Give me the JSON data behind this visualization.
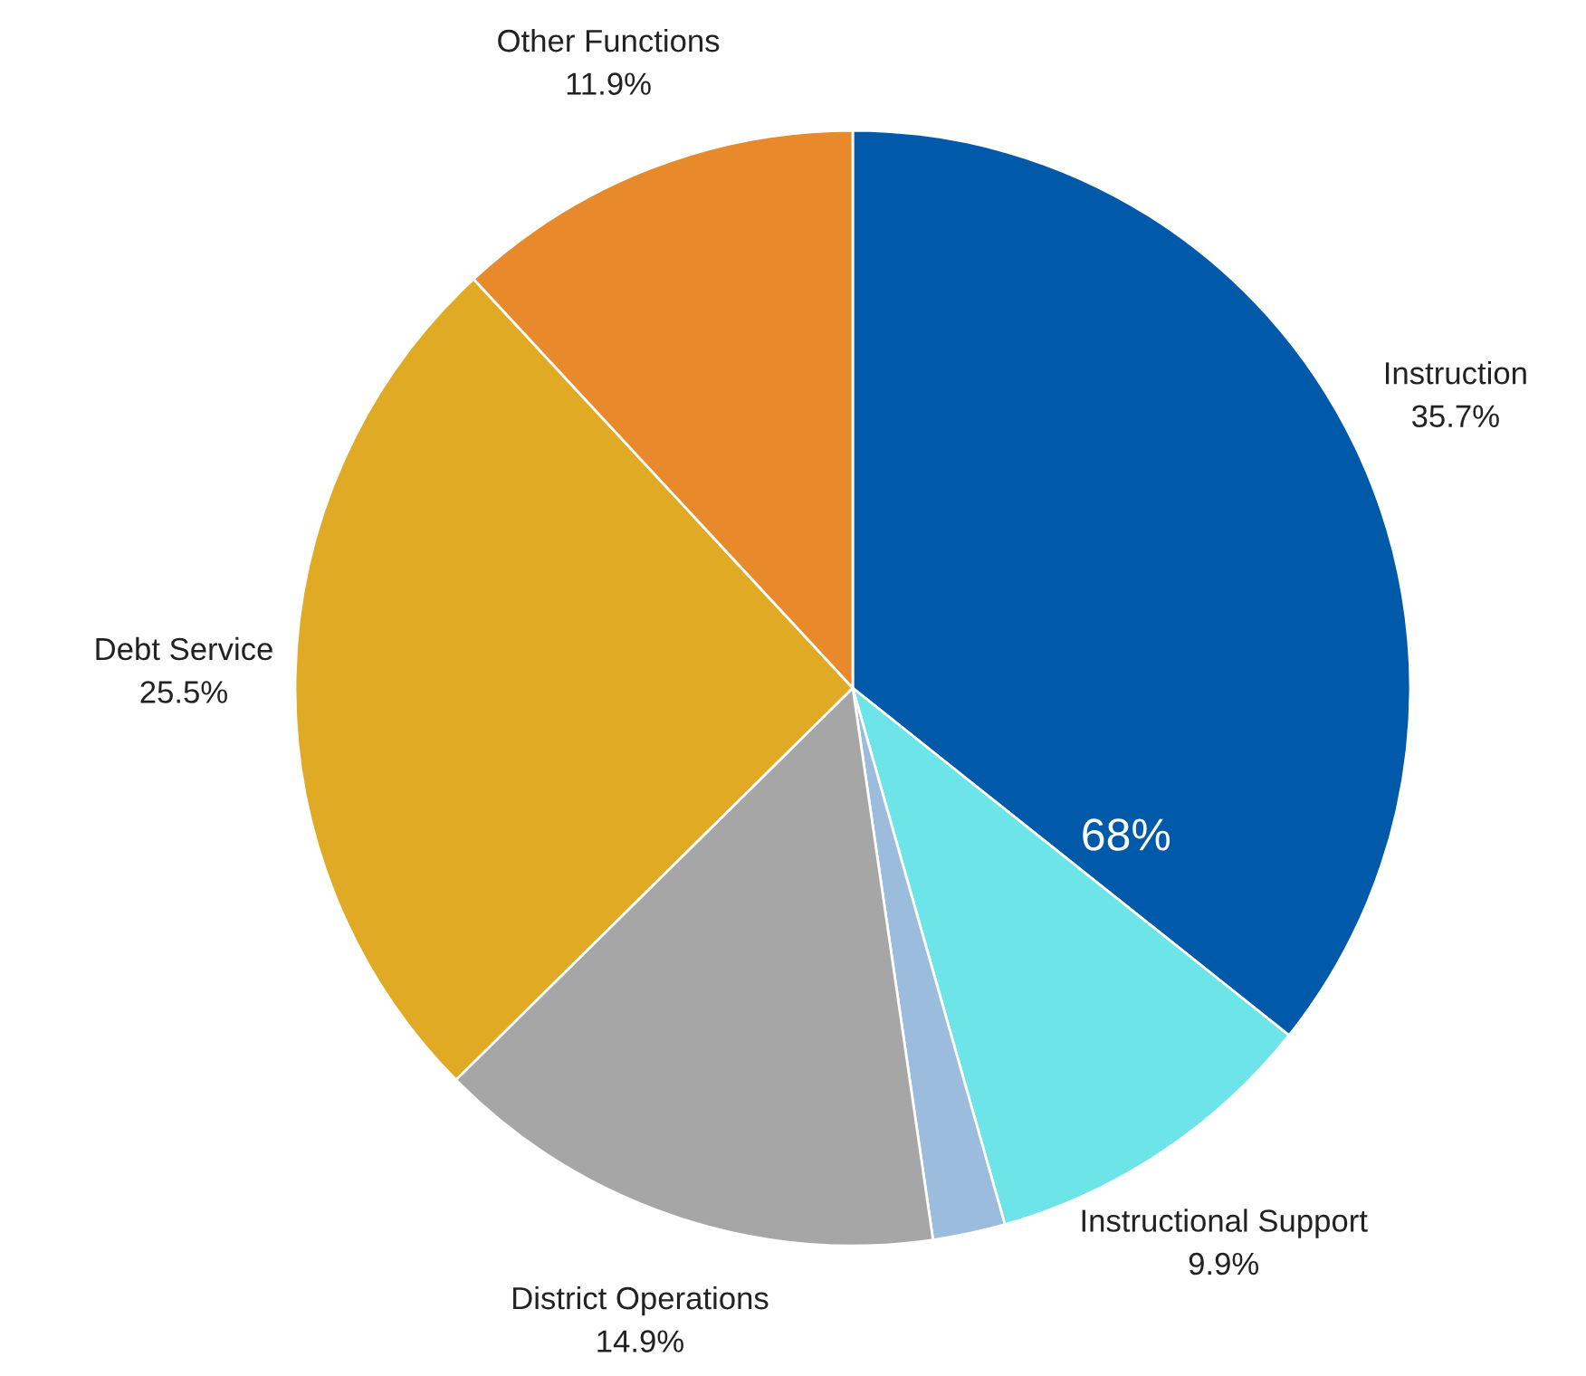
{
  "chart_data": {
    "type": "pie",
    "categories": [
      "Instruction",
      "Instructional Support",
      null,
      "District Operations",
      "Debt Service",
      "Other Functions"
    ],
    "values": [
      35.7,
      9.9,
      2.1,
      14.9,
      25.5,
      11.9
    ],
    "value_labels": [
      "35.7%",
      "9.9%",
      null,
      "14.9%",
      "25.5%",
      "11.9%"
    ],
    "colors": [
      "#005aa9",
      "#6ce4e8",
      "#9bbcdc",
      "#a6a6a6",
      "#e0aa25",
      "#e8892b"
    ],
    "annotations": [
      "68%"
    ],
    "legend": false
  }
}
